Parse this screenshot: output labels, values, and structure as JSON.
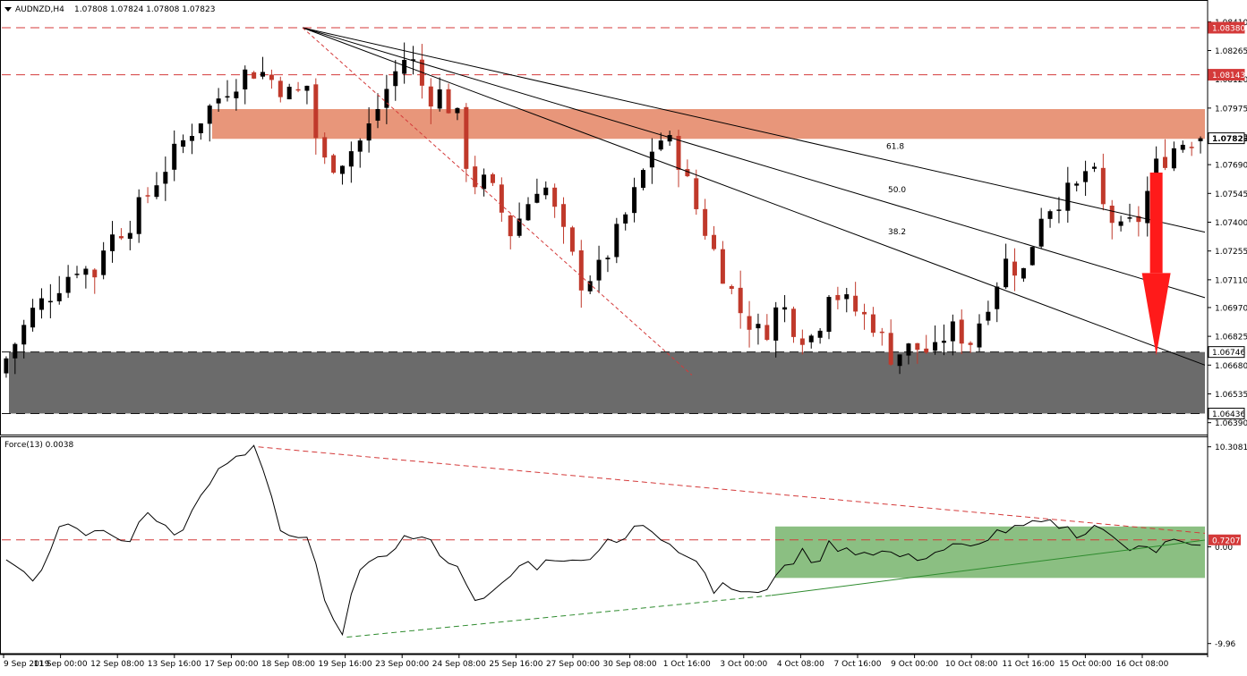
{
  "header": {
    "symbol": "AUDNZD,H4",
    "ohlc": "1.07808 1.07824 1.07808 1.07823"
  },
  "indicator": {
    "label": "Force(13) 0.0038",
    "ticks": [
      "10.3081",
      "0.00",
      "-9.96"
    ],
    "level_label": "0.7207"
  },
  "colors": {
    "bull": "#000000",
    "bear": "#c0392b",
    "resistance_zone": "#e8967a",
    "support_zone": "#6b6b6b",
    "level_line": "#d43a3a",
    "force_zone": "#8bbf82",
    "arrow": "#ff1a1a",
    "uptrend": "#2e8b2e"
  },
  "chart_data": [
    {
      "type": "candlestick",
      "title": "AUDNZD,H4",
      "price_ticks": [
        "1.08410",
        "1.08265",
        "1.08120",
        "1.07975",
        "1.07830",
        "1.07690",
        "1.07545",
        "1.07400",
        "1.07255",
        "1.07110",
        "1.06970",
        "1.06825",
        "1.06680",
        "1.06535",
        "1.06390"
      ],
      "ylim": [
        1.0633,
        1.0847
      ],
      "date_labels": [
        "9 Sep 2019",
        "11 Sep 00:00",
        "12 Sep 08:00",
        "13 Sep 16:00",
        "17 Sep 00:00",
        "18 Sep 08:00",
        "19 Sep 16:00",
        "23 Sep 00:00",
        "24 Sep 08:00",
        "25 Sep 16:00",
        "27 Sep 00:00",
        "30 Sep 08:00",
        "1 Oct 16:00",
        "3 Oct 00:00",
        "4 Oct 08:00",
        "7 Oct 16:00",
        "9 Oct 00:00",
        "10 Oct 08:00",
        "11 Oct 16:00",
        "15 Oct 00:00",
        "16 Oct 08:00"
      ],
      "levels": [
        {
          "label": "1.08380",
          "value": 1.0838
        },
        {
          "label": "1.08143",
          "value": 1.08143
        },
        {
          "label": "1.07823",
          "value": 1.07823
        },
        {
          "label": "1.06746",
          "value": 1.06746
        },
        {
          "label": "1.06436",
          "value": 1.06436
        }
      ],
      "resistance_zone": [
        1.0782,
        1.0797
      ],
      "support_zone": [
        1.06436,
        1.06746
      ],
      "fib_labels": [
        "61.8",
        "50.0",
        "38.2"
      ],
      "trend_points": [
        [
          -2.5,
          1.0648
        ],
        [
          3.5,
          1.0695
        ],
        [
          8.5,
          1.0718
        ],
        [
          10.5,
          1.0714
        ],
        [
          11,
          1.0727
        ],
        [
          14.5,
          1.074
        ],
        [
          18,
          1.0765
        ],
        [
          22,
          1.079
        ],
        [
          25.5,
          1.0808
        ],
        [
          27.5,
          1.0815
        ],
        [
          29,
          1.0817
        ],
        [
          33,
          1.0803
        ],
        [
          34.5,
          1.0809
        ],
        [
          36,
          1.077
        ],
        [
          38,
          1.077
        ],
        [
          41,
          1.0783
        ],
        [
          44,
          1.0812
        ],
        [
          46,
          1.0826
        ],
        [
          48,
          1.0803
        ],
        [
          49.5,
          1.0805
        ],
        [
          51.5,
          1.0792
        ],
        [
          53,
          1.076
        ],
        [
          55,
          1.076
        ],
        [
          57.5,
          1.0735
        ],
        [
          59,
          1.0746
        ],
        [
          61,
          1.0763
        ],
        [
          63.5,
          1.0733
        ],
        [
          65.5,
          1.071
        ],
        [
          67.5,
          1.0716
        ],
        [
          70,
          1.0738
        ],
        [
          72,
          1.0759
        ],
        [
          74,
          1.0783
        ],
        [
          76,
          1.0778
        ],
        [
          78.5,
          1.0747
        ],
        [
          81,
          1.072
        ],
        [
          83.5,
          1.0695
        ],
        [
          86,
          1.0682
        ],
        [
          88,
          1.07
        ],
        [
          90,
          1.0684
        ],
        [
          92,
          1.0682
        ],
        [
          93.5,
          1.0707
        ],
        [
          96,
          1.0697
        ],
        [
          98.5,
          1.0689
        ],
        [
          100.5,
          1.0673
        ],
        [
          103,
          1.0677
        ],
        [
          105.5,
          1.0674
        ],
        [
          107,
          1.0687
        ],
        [
          109.5,
          1.068
        ],
        [
          112,
          1.0706
        ],
        [
          113.5,
          1.072
        ],
        [
          115.5,
          1.0715
        ],
        [
          117.5,
          1.0745
        ],
        [
          119.5,
          1.0752
        ],
        [
          121.5,
          1.0757
        ],
        [
          123,
          1.077
        ],
        [
          124.5,
          1.0747
        ],
        [
          126.5,
          1.0735
        ],
        [
          128.5,
          1.0742
        ],
        [
          130.5,
          1.0768
        ],
        [
          133,
          1.078
        ],
        [
          134.5,
          1.0782
        ]
      ],
      "force_points": [
        [
          -2,
          0.2
        ],
        [
          2,
          -1.8
        ],
        [
          4,
          -3.6
        ],
        [
          7,
          3.2
        ],
        [
          10,
          0.4
        ],
        [
          11,
          2.1
        ],
        [
          14,
          0.2
        ],
        [
          16.5,
          3.5
        ],
        [
          20,
          1.3
        ],
        [
          24,
          7.5
        ],
        [
          27.5,
          9.6
        ],
        [
          28.5,
          10.3
        ],
        [
          30,
          6.8
        ],
        [
          31.5,
          1.3
        ],
        [
          33,
          0.8
        ],
        [
          34,
          1.3
        ],
        [
          35,
          0.0
        ],
        [
          37,
          -7.6
        ],
        [
          38.5,
          -8.6
        ],
        [
          39.5,
          -4.5
        ],
        [
          40.5,
          -2.5
        ],
        [
          43,
          -1.2
        ],
        [
          45,
          0.7
        ],
        [
          46,
          1.1
        ],
        [
          48,
          0.8
        ],
        [
          50,
          -1.0
        ],
        [
          52,
          -2.7
        ],
        [
          54,
          -6.0
        ],
        [
          56.5,
          -4.0
        ],
        [
          59,
          -1.5
        ],
        [
          60.5,
          -2.0
        ],
        [
          63,
          -0.9
        ],
        [
          65,
          -1.9
        ],
        [
          67,
          -0.5
        ],
        [
          69,
          1.1
        ],
        [
          70,
          0.5
        ],
        [
          71.5,
          2.2
        ],
        [
          73.5,
          1.5
        ],
        [
          75,
          0.3
        ],
        [
          77,
          -0.7
        ],
        [
          79,
          -1.3
        ],
        [
          80.5,
          -4.5
        ],
        [
          81.5,
          -3.6
        ],
        [
          83.5,
          -4.7
        ],
        [
          85,
          -3.9
        ],
        [
          86,
          -5.0
        ],
        [
          87,
          -4.6
        ],
        [
          88,
          -1.0
        ],
        [
          89,
          -2.6
        ],
        [
          90.5,
          -0.5
        ],
        [
          92,
          -1.8
        ],
        [
          93.5,
          0.2
        ],
        [
          95.5,
          -0.4
        ],
        [
          98,
          -0.5
        ],
        [
          100,
          -0.5
        ],
        [
          102,
          -1.1
        ],
        [
          104,
          -1.1
        ],
        [
          106,
          -0.4
        ],
        [
          108,
          0.2
        ],
        [
          110,
          -0.3
        ],
        [
          112,
          1.5
        ],
        [
          114,
          1.7
        ],
        [
          116,
          2.2
        ],
        [
          118,
          2.5
        ],
        [
          120,
          2.1
        ],
        [
          122,
          1.1
        ],
        [
          124,
          2.5
        ],
        [
          125.5,
          0.8
        ],
        [
          127.5,
          -0.2
        ],
        [
          129,
          0.7
        ],
        [
          130.5,
          -0.4
        ],
        [
          132,
          0.8
        ],
        [
          133,
          0.4
        ],
        [
          134.5,
          0.0
        ]
      ]
    },
    {
      "type": "line",
      "title": "Force(13) 0.0038",
      "ylim": [
        -11.0,
        11.2
      ],
      "level": 0.7207,
      "zero": 0.0,
      "zone": [
        -2.3,
        1.5
      ],
      "note": "force index oscillator"
    }
  ]
}
